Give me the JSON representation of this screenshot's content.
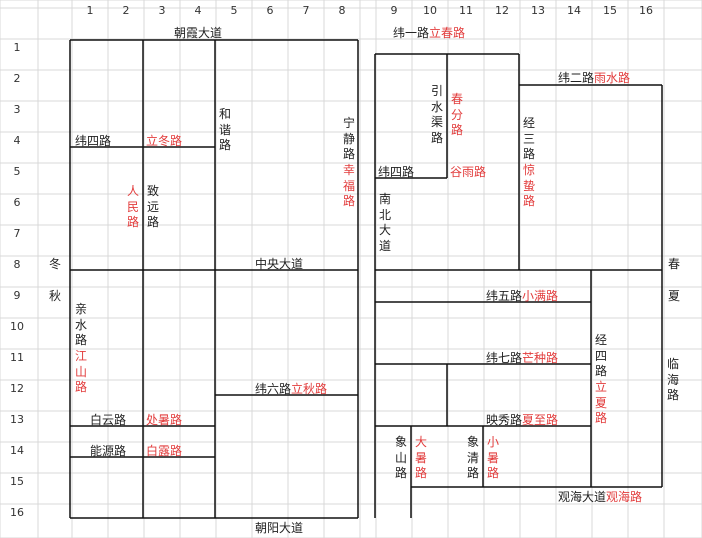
{
  "grid": {
    "col_numbers": [
      "1",
      "2",
      "3",
      "4",
      "5",
      "6",
      "7",
      "8",
      "9",
      "10",
      "11",
      "12",
      "13",
      "14",
      "15",
      "16"
    ],
    "row_numbers": [
      "1",
      "2",
      "3",
      "4",
      "5",
      "6",
      "7",
      "8",
      "9",
      "10",
      "11",
      "12",
      "13",
      "14",
      "15",
      "16"
    ]
  },
  "colors": {
    "gridline": "#d9d9d9",
    "road_line": "#111111",
    "highlight": "#e23c3c"
  },
  "roads": {
    "zhaoxia": "朝霞大道",
    "weiyi": "纬一路",
    "lichun": "立春路",
    "weier": "纬二路",
    "yushui": "雨水路",
    "weisi_left": "纬四路",
    "lidong": "立冬路",
    "hexie": "和谐路",
    "ningjing": "宁静路",
    "xingfu": "幸福路",
    "yinshui": "引水渠路",
    "chunfen": "春分路",
    "jingsan": "经三路",
    "jingzhe": "惊蛰路",
    "weisi_right": "纬四路",
    "guyu": "谷雨路",
    "renmin": "人民路",
    "zhiyuan": "致远路",
    "nanbei": "南北大道",
    "zhongyang": "中央大道",
    "qinshui": "亲水路",
    "jiangshan": "江山路",
    "weiwu": "纬五路",
    "xiaoman": "小满路",
    "weiqi": "纬七路",
    "mangzhong": "芒种路",
    "jingsi": "经四路",
    "lixia": "立夏路",
    "weiliu": "纬六路",
    "liqiu": "立秋路",
    "linhai": "临海路",
    "baiyun": "白云路",
    "chushu": "处暑路",
    "yingxiu": "映秀路",
    "xiazhi": "夏至路",
    "nengyuan": "能源路",
    "bailu": "白露路",
    "xiangshan": "象山路",
    "dashu": "大暑路",
    "xiangqing": "象清路",
    "xiaoshu": "小暑路",
    "guanhai": "观海大道",
    "guanhai_road": "观海路",
    "zhaoyang": "朝阳大道"
  },
  "seasons": {
    "winter": "冬",
    "autumn": "秋",
    "spring": "春",
    "summer": "夏"
  }
}
